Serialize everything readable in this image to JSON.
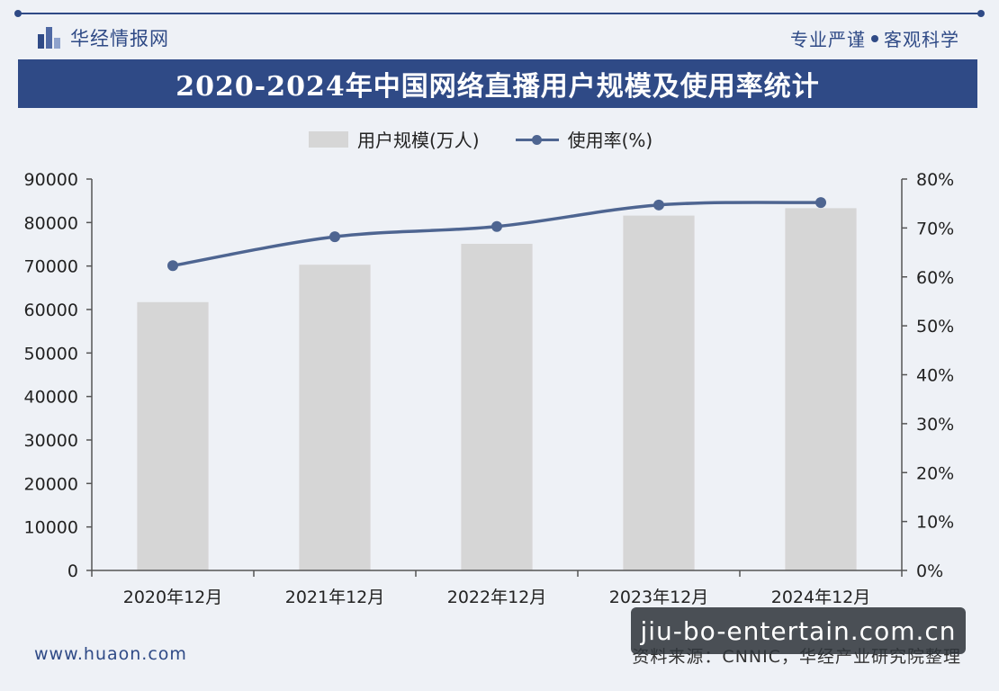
{
  "header": {
    "brand": "华经情报网",
    "slogan_left": "专业严谨",
    "slogan_right": "客观科学"
  },
  "title": "2020-2024年中国网络直播用户规模及使用率统计",
  "legend": {
    "bar_label": "用户规模(万人)",
    "line_label": "使用率(%)"
  },
  "chart_data": {
    "type": "bar",
    "title": "2020-2024年中国网络直播用户规模及使用率统计",
    "categories": [
      "2020年12月",
      "2021年12月",
      "2022年12月",
      "2023年12月",
      "2024年12月"
    ],
    "series": [
      {
        "name": "用户规模(万人)",
        "type": "bar",
        "axis": "left",
        "values": [
          61700,
          70300,
          75100,
          81600,
          83300
        ]
      },
      {
        "name": "使用率(%)",
        "type": "line",
        "axis": "right",
        "values": [
          62.3,
          68.2,
          70.3,
          74.7,
          75.2
        ]
      }
    ],
    "ylim_left": [
      0,
      90000
    ],
    "left_ticks": [
      "0",
      "10000",
      "20000",
      "30000",
      "40000",
      "50000",
      "60000",
      "70000",
      "80000",
      "90000"
    ],
    "ylim_right": [
      0,
      80
    ],
    "right_ticks": [
      "0%",
      "10%",
      "20%",
      "30%",
      "40%",
      "50%",
      "60%",
      "70%",
      "80%"
    ],
    "grid": false,
    "legend_position": "top-center",
    "colors": {
      "bar": "#d6d6d6",
      "line": "#4e6591",
      "axis": "#555555"
    }
  },
  "footer": {
    "url": "www.huaon.com",
    "source": "资料来源：CNNIC，华经产业研究院整理"
  },
  "watermark_badge": "jiu-bo-entertain.com.cn"
}
